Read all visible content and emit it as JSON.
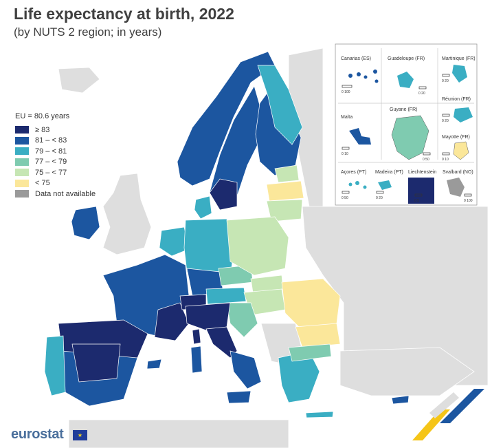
{
  "title": "Life expectancy at birth, 2022",
  "subtitle": "(by NUTS 2 region; in years)",
  "legend": {
    "title": "EU = 80.6 years",
    "items": [
      {
        "label": "≥ 83",
        "color": "#1c2a6e"
      },
      {
        "label": "81 – < 83",
        "color": "#1c56a0"
      },
      {
        "label": "79 – < 81",
        "color": "#3aaec3"
      },
      {
        "label": "77 – < 79",
        "color": "#7fcbb0"
      },
      {
        "label": "75 – < 77",
        "color": "#c6e6b4"
      },
      {
        "label": "< 75",
        "color": "#fbe79a"
      },
      {
        "label": "Data not available",
        "color": "#9a9a9a"
      }
    ]
  },
  "insets": [
    {
      "name": "Canarias (ES)",
      "scale": "0   100"
    },
    {
      "name": "Guadeloupe (FR)",
      "scale": "0   20"
    },
    {
      "name": "Martinique (FR)",
      "scale": "0   20"
    },
    {
      "name": "Réunion (FR)",
      "scale": "0   20"
    },
    {
      "name": "Malta",
      "scale": "0   10"
    },
    {
      "name": "Guyane (FR)",
      "scale": "0   50"
    },
    {
      "name": "Mayotte (FR)",
      "scale": "0   10"
    },
    {
      "name": "Açores (PT)",
      "scale": "0   50"
    },
    {
      "name": "Madeira (PT)",
      "scale": "0   20"
    },
    {
      "name": "Liechtenstein",
      "scale": "0   5"
    },
    {
      "name": "Svalbard (NO)",
      "scale": "0   100"
    }
  ],
  "brand": {
    "name": "eurostat",
    "flag_stars": "★"
  },
  "colors": {
    "non_eu": "#dedede",
    "sea": "#ffffff",
    "border": "#c8c8c8"
  }
}
